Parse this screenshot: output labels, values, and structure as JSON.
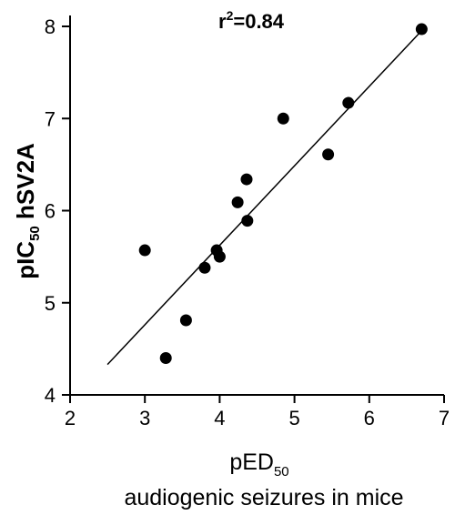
{
  "chart_data": {
    "type": "scatter",
    "annotation": {
      "base": "r",
      "sup": "2",
      "rest": "=0.84"
    },
    "ylabel": {
      "main": "pIC",
      "sub": "50",
      "rest": " hSV2A"
    },
    "xlabel": {
      "main": "pED",
      "sub": "50",
      "line2": "audiogenic seizures in mice"
    },
    "xlim": [
      2,
      7
    ],
    "ylim": [
      4,
      8
    ],
    "xticks": [
      "2",
      "3",
      "4",
      "5",
      "6",
      "7"
    ],
    "yticks": [
      "4",
      "5",
      "6",
      "7",
      "8"
    ],
    "points": [
      {
        "x": 3.0,
        "y": 5.57
      },
      {
        "x": 3.28,
        "y": 4.4
      },
      {
        "x": 3.55,
        "y": 4.81
      },
      {
        "x": 3.8,
        "y": 5.38
      },
      {
        "x": 3.96,
        "y": 5.57
      },
      {
        "x": 4.0,
        "y": 5.5
      },
      {
        "x": 4.24,
        "y": 6.09
      },
      {
        "x": 4.36,
        "y": 6.34
      },
      {
        "x": 4.37,
        "y": 5.89
      },
      {
        "x": 4.85,
        "y": 7.0
      },
      {
        "x": 5.45,
        "y": 6.61
      },
      {
        "x": 5.72,
        "y": 7.17
      },
      {
        "x": 6.7,
        "y": 7.97
      }
    ],
    "fit_line": {
      "x": [
        2.5,
        6.72
      ],
      "y": [
        4.33,
        7.97
      ]
    }
  }
}
